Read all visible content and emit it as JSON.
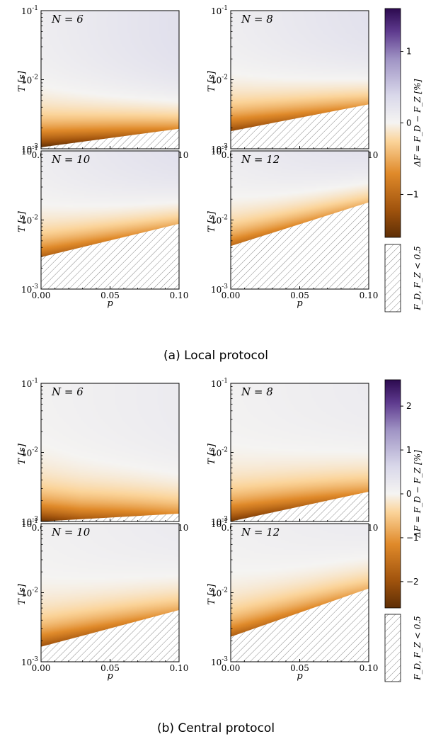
{
  "figure": {
    "captions": [
      "(a) Local protocol",
      "(b) Central protocol"
    ]
  },
  "chart_data": [
    {
      "type": "heatmap",
      "group": "(a) Local protocol",
      "xlabel": "p",
      "ylabel": "T [s]",
      "xlim": [
        0.0,
        0.1
      ],
      "ylim": [
        0.001,
        0.1
      ],
      "yscale": "log",
      "xticks": [
        "0.00",
        "0.05",
        "0.10"
      ],
      "yticks": [
        "10^-3",
        "10^-2",
        "10^-1"
      ],
      "colorbar": {
        "label": "ΔF = F_D − F_Z [%]",
        "range": [
          -1.6,
          1.6
        ],
        "ticks": [
          -1,
          0,
          1
        ],
        "hatch_label": "F_D, F_Z < 0.5"
      },
      "panels": [
        {
          "annotation": "N = 6",
          "hatch_boundary_T": {
            "p": [
              0.0,
              0.1
            ],
            "T": [
              0.00105,
              0.00195
            ]
          },
          "min_dF_near_T_min": -1.6,
          "max_dF": 0.4
        },
        {
          "annotation": "N = 8",
          "hatch_boundary_T": {
            "p": [
              0.0,
              0.1
            ],
            "T": [
              0.0018,
              0.0044
            ]
          },
          "min_dF_near_T_min": -1.3,
          "max_dF": 0.4
        },
        {
          "annotation": "N = 10",
          "hatch_boundary_T": {
            "p": [
              0.0,
              0.1
            ],
            "T": [
              0.0029,
              0.0088
            ]
          },
          "min_dF_near_T_min": -1.1,
          "max_dF": 0.45
        },
        {
          "annotation": "N = 12",
          "hatch_boundary_T": {
            "p": [
              0.0,
              0.1
            ],
            "T": [
              0.0042,
              0.018
            ]
          },
          "min_dF_near_T_min": -1.0,
          "max_dF": 0.5
        }
      ]
    },
    {
      "type": "heatmap",
      "group": "(b) Central protocol",
      "xlabel": "p",
      "ylabel": "T [s]",
      "xlim": [
        0.0,
        0.1
      ],
      "ylim": [
        0.001,
        0.1
      ],
      "yscale": "log",
      "xticks": [
        "0.00",
        "0.05",
        "0.10"
      ],
      "yticks": [
        "10^-3",
        "10^-2",
        "10^-1"
      ],
      "colorbar": {
        "label": "ΔF = F_D − F_Z [%]",
        "range": [
          -2.6,
          2.6
        ],
        "ticks": [
          -2,
          -1,
          0,
          1,
          2
        ],
        "hatch_label": "F_D, F_Z < 0.5"
      },
      "panels": [
        {
          "annotation": "N = 6",
          "hatch_boundary_T": {
            "p": [
              0.0,
              0.1
            ],
            "T": [
              0.0009,
              0.0013
            ]
          },
          "min_dF_near_T_min": -2.5,
          "max_dF": 0.3
        },
        {
          "annotation": "N = 8",
          "hatch_boundary_T": {
            "p": [
              0.0,
              0.1
            ],
            "T": [
              0.001,
              0.0027
            ]
          },
          "min_dF_near_T_min": -2.4,
          "max_dF": 0.3
        },
        {
          "annotation": "N = 10",
          "hatch_boundary_T": {
            "p": [
              0.0,
              0.1
            ],
            "T": [
              0.00165,
              0.0056
            ]
          },
          "min_dF_near_T_min": -2.0,
          "max_dF": 0.35
        },
        {
          "annotation": "N = 12",
          "hatch_boundary_T": {
            "p": [
              0.0,
              0.1
            ],
            "T": [
              0.0023,
              0.0115
            ]
          },
          "min_dF_near_T_min": -1.8,
          "max_dF": 0.4
        }
      ]
    }
  ]
}
